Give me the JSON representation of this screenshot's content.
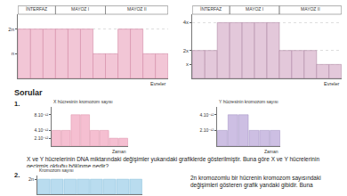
{
  "chart_data": [
    {
      "type": "bar",
      "xlabel": "Evreler",
      "categories": [
        null,
        null,
        null,
        null,
        null,
        null,
        null,
        null,
        null,
        null,
        null,
        null
      ],
      "values": [
        2,
        2,
        2,
        2,
        2,
        2,
        1,
        1,
        2,
        2,
        1,
        1
      ],
      "phases": [
        {
          "label": "İNTERFAZ",
          "from": 0,
          "to": 2
        },
        {
          "label": "MAYOZ I",
          "from": 3,
          "to": 6
        },
        {
          "label": "MAYOZ II",
          "from": 7,
          "to": 11
        }
      ],
      "color": "#f2c6d6",
      "ylim": [
        0,
        2.6
      ],
      "yticks": [
        {
          "value": 1,
          "label": "n"
        },
        {
          "value": 2,
          "label": "2n"
        }
      ],
      "grid": true,
      "tick_labels": "y"
    },
    {
      "type": "bar",
      "xlabel": "Evreler",
      "categories": [
        null,
        null,
        null,
        null,
        null,
        null,
        null,
        null,
        null,
        null,
        null,
        null
      ],
      "values": [
        2,
        2,
        4,
        4,
        4,
        4,
        4,
        2,
        2,
        2,
        1,
        1
      ],
      "phases": [
        {
          "label": "İNTERFAZ",
          "from": 0,
          "to": 2
        },
        {
          "label": "MAYOZ I",
          "from": 3,
          "to": 6
        },
        {
          "label": "MAYOZ II",
          "from": 7,
          "to": 11
        }
      ],
      "color": "#e3c8da",
      "ylim": [
        0,
        4.6
      ],
      "yticks": [
        {
          "value": 1,
          "label": "x"
        },
        {
          "value": 2,
          "label": "2x"
        },
        {
          "value": 4,
          "label": "4x"
        }
      ],
      "grid": true,
      "tick_labels": "y"
    },
    {
      "type": "bar",
      "ylabel": "X hücresinin kromozom sayısı",
      "xlabel": "Zaman",
      "categories": [
        null,
        null,
        null,
        null,
        null,
        null,
        null,
        null
      ],
      "values": [
        4e-12,
        4e-12,
        8e-12,
        8e-12,
        4e-12,
        4e-12,
        2e-12,
        2e-12
      ],
      "color": "#f5bfd1",
      "ylim": [
        0,
        1e-11
      ],
      "yticks": [
        {
          "value": 2e-12,
          "label": "2.10⁻¹²"
        },
        {
          "value": 4e-12,
          "label": "4.10⁻¹²"
        },
        {
          "value": 8e-12,
          "label": "8.10⁻¹²"
        }
      ],
      "grid": false,
      "tick_labels": "y"
    },
    {
      "type": "bar",
      "ylabel": "Y hücresinin kromozom sayısı",
      "xlabel": "Zaman",
      "categories": [
        null,
        null,
        null,
        null,
        null,
        null
      ],
      "values": [
        2e-12,
        4e-12,
        4e-12,
        2e-12,
        2e-12,
        2e-12
      ],
      "color": "#cdbfe3",
      "ylim": [
        0,
        5e-12
      ],
      "yticks": [
        {
          "value": 2e-12,
          "label": "2.10⁻¹²"
        },
        {
          "value": 4e-12,
          "label": "4.10⁻¹²"
        }
      ],
      "grid": false,
      "tick_labels": "y"
    },
    {
      "type": "bar",
      "ylabel": "Kromozom sayısı",
      "categories": [
        null,
        null,
        null,
        null,
        null,
        null,
        null,
        null
      ],
      "values": [
        2,
        2,
        2,
        2,
        2,
        2,
        2,
        2
      ],
      "color": "#b9dcef",
      "ylim": [
        0,
        2.5
      ],
      "yticks": [
        {
          "value": 2,
          "label": "2n"
        }
      ],
      "grid": false,
      "tick_labels": "y"
    }
  ],
  "texts": {
    "heading": "Sorular",
    "q1_number": "1.",
    "q1_text": "X ve Y hücrelerinin DNA miktarındaki değişimler yukarıdaki grafiklerde gösterilmiştir. Buna göre X ve Y hücrelerinin geçirmiş olduğu bölünme nedir?",
    "q2_number": "2.",
    "q2_text": "2n kromozomlu bir hücrenin kromozom sayısındaki değişimleri gösteren grafik yandaki gibidir. Buna"
  }
}
